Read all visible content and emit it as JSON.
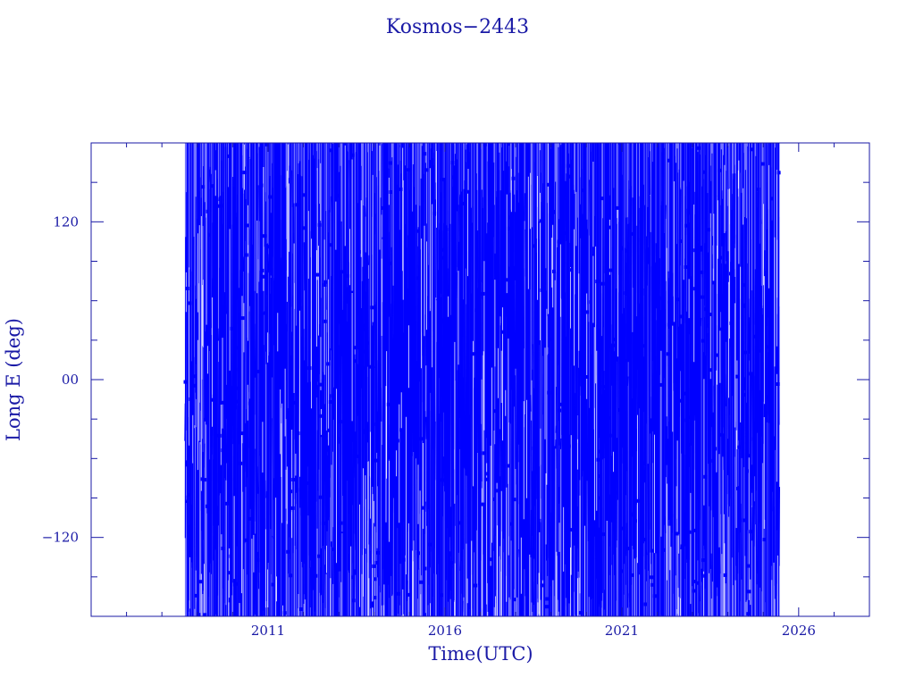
{
  "chart_data": {
    "type": "line",
    "title": "Kosmos−2443",
    "xlabel": "Time(UTC)",
    "ylabel": "Long E (deg)",
    "xlim": [
      2006.0,
      2028.0
    ],
    "ylim": [
      -180,
      180
    ],
    "x_ticks": [
      2011,
      2016,
      2021,
      2026
    ],
    "y_ticks": [
      {
        "value": 120,
        "label": "120"
      },
      {
        "value": 0,
        "label": "00"
      },
      {
        "value": -120,
        "label": "−120"
      }
    ],
    "grid": false,
    "series": [
      {
        "color": "#0000ff",
        "x_start": 2008.65,
        "x_end": 2025.45,
        "y_range": [
          -180,
          180
        ],
        "values_note": "wrapping longitude, values cycle between -180 and 180"
      }
    ]
  }
}
